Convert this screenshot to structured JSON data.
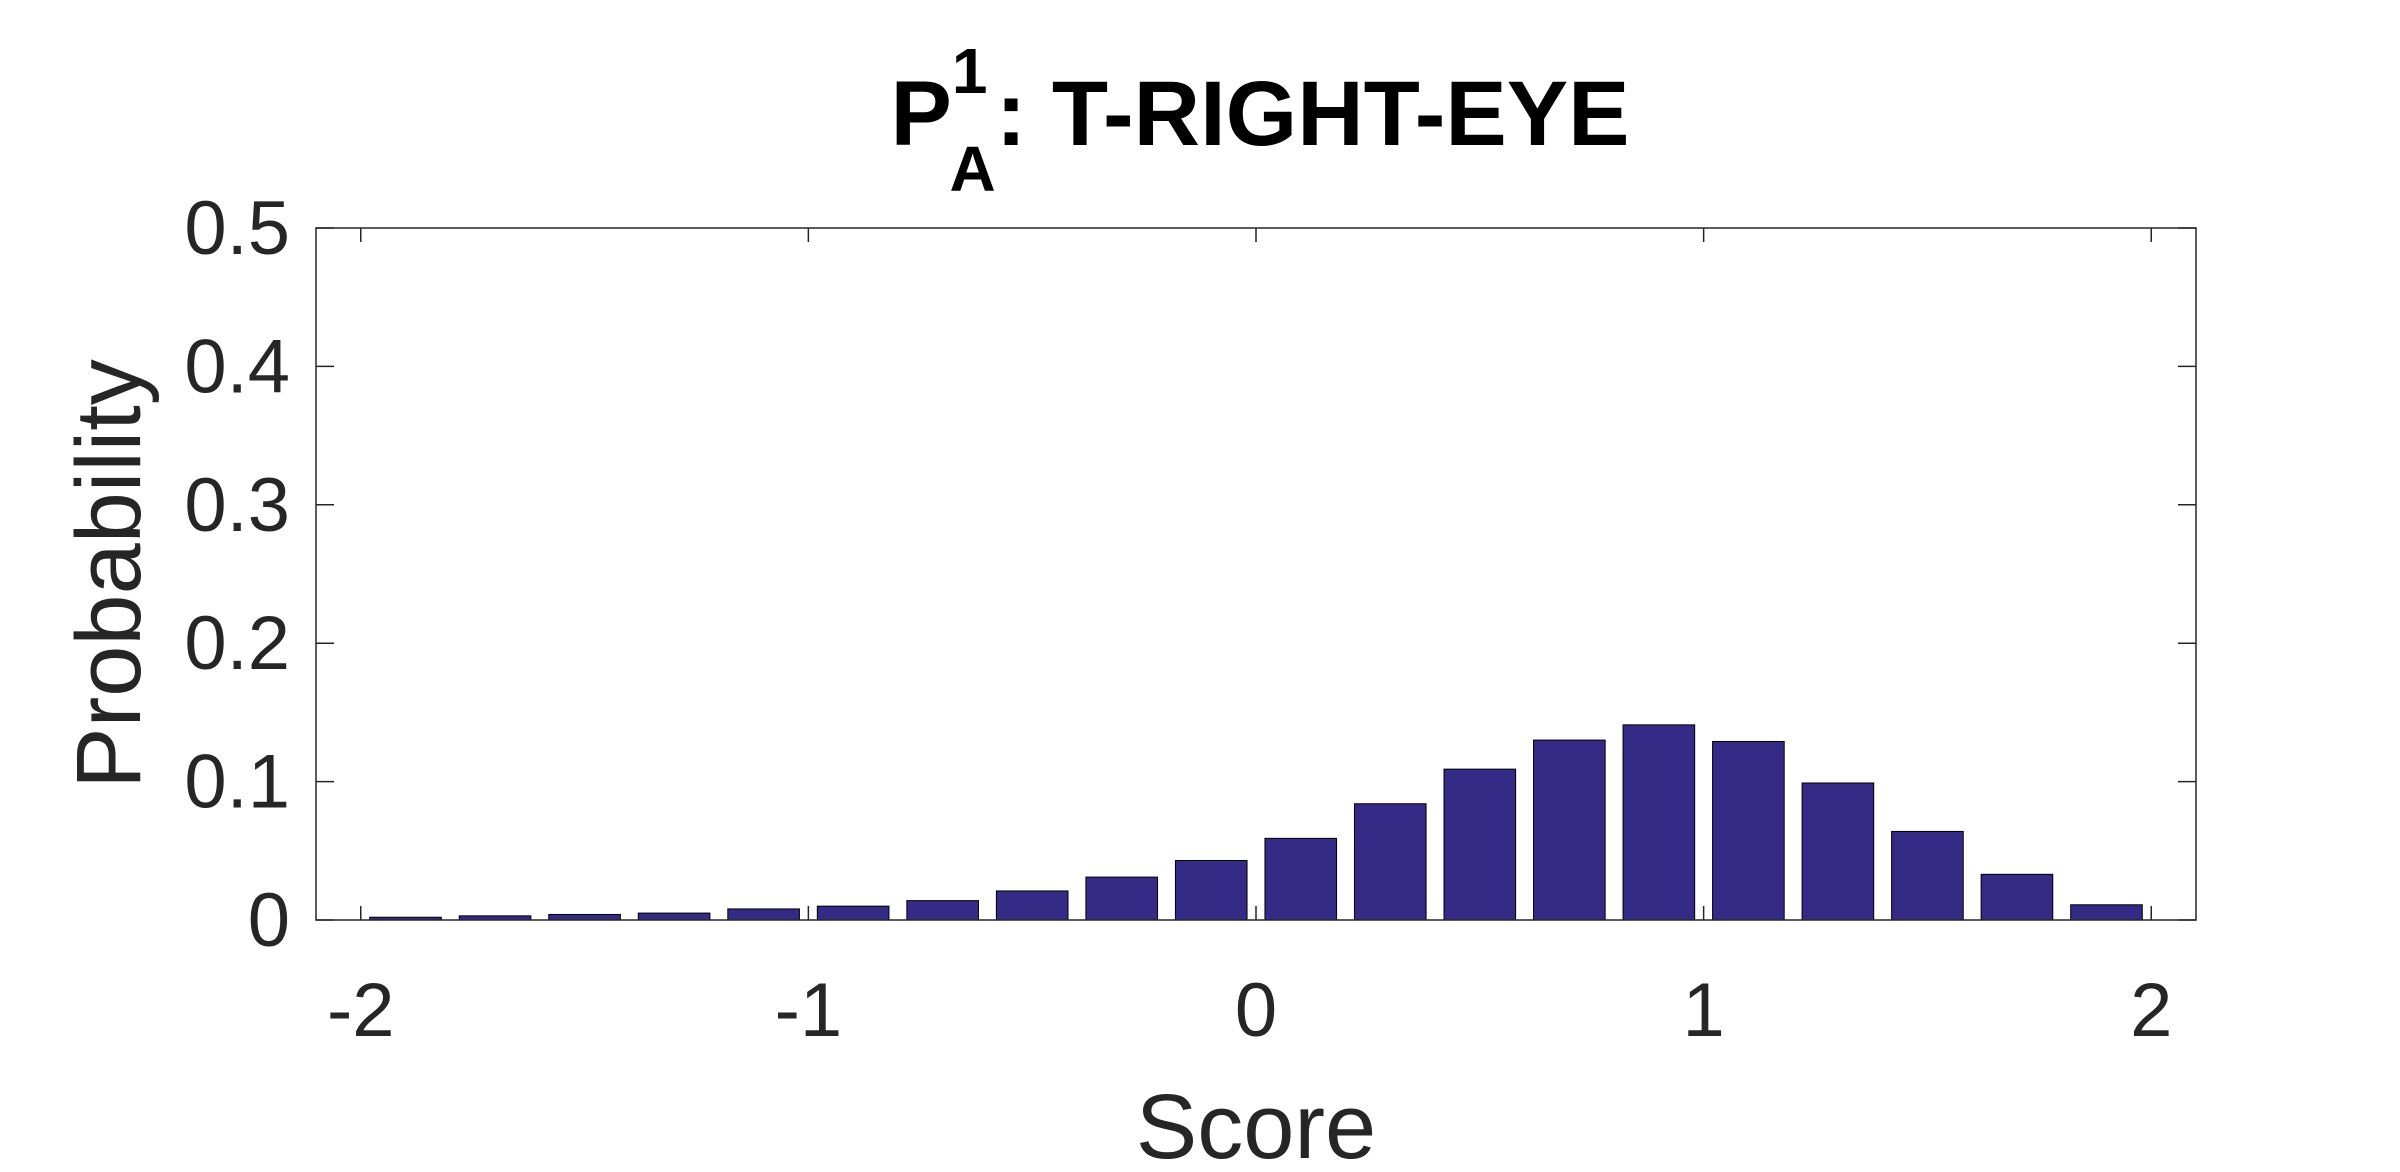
{
  "chart_data": {
    "type": "bar",
    "title": {
      "base": "P",
      "superscript": "1",
      "subscript": "A",
      "rest": ": T-RIGHT-EYE"
    },
    "xlabel": "Score",
    "ylabel": "Probability",
    "xlim": [
      -2.1,
      2.1
    ],
    "ylim": [
      0,
      0.5
    ],
    "xticks": [
      -2,
      -1,
      0,
      1,
      2
    ],
    "yticks": [
      0,
      0.1,
      0.2,
      0.3,
      0.4,
      0.5
    ],
    "x": [
      -1.9,
      -1.7,
      -1.5,
      -1.3,
      -1.1,
      -0.9,
      -0.7,
      -0.5,
      -0.3,
      -0.1,
      0.1,
      0.3,
      0.5,
      0.7,
      0.9,
      1.1,
      1.3,
      1.5,
      1.7,
      1.9
    ],
    "values": [
      0.002,
      0.003,
      0.004,
      0.005,
      0.008,
      0.01,
      0.014,
      0.021,
      0.031,
      0.043,
      0.059,
      0.084,
      0.109,
      0.13,
      0.141,
      0.129,
      0.099,
      0.064,
      0.033,
      0.011
    ],
    "bar_color": "#362a87",
    "bar_edge_color": "#000000",
    "grid": false,
    "legend": "none"
  }
}
